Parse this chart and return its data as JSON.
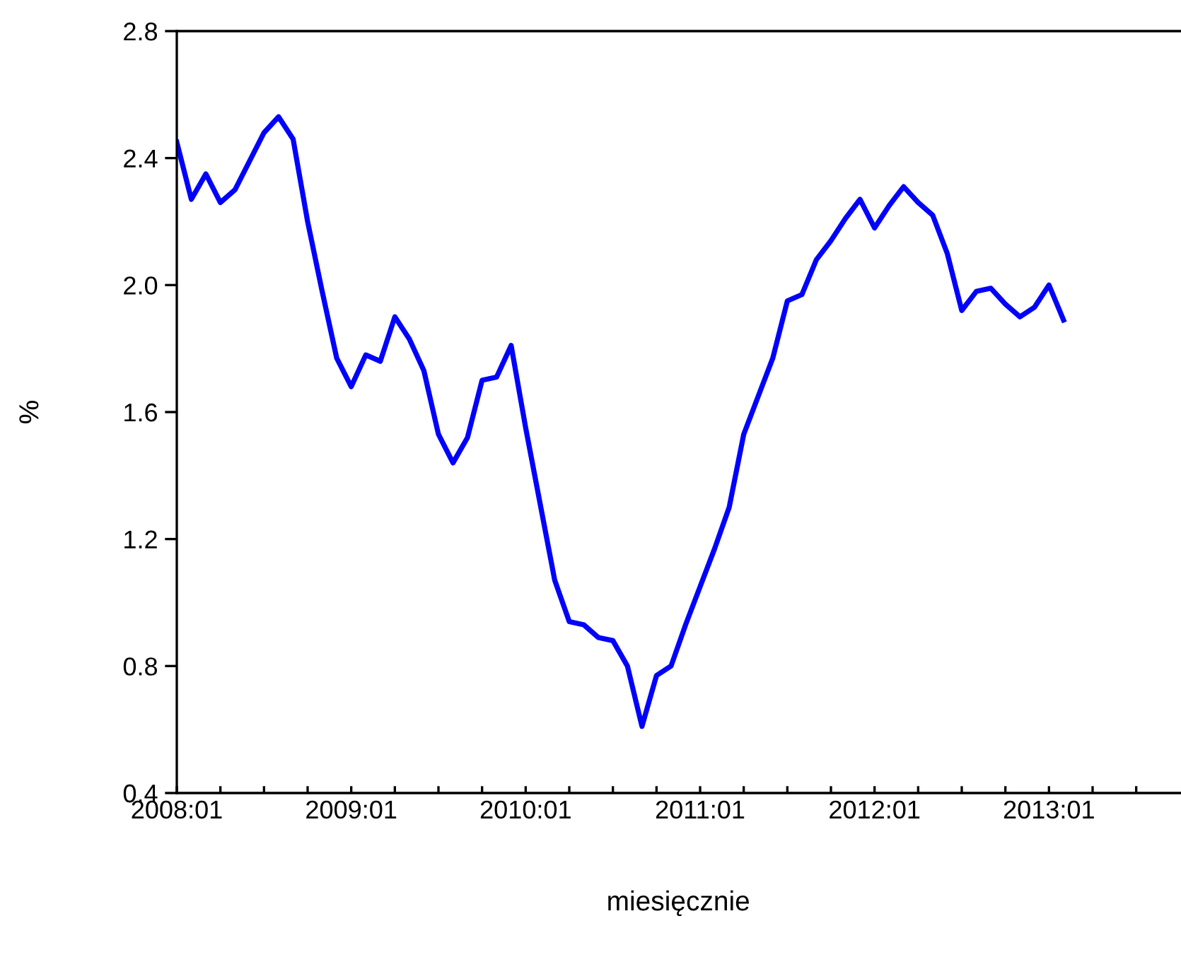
{
  "chart_data": {
    "type": "line",
    "xlabel": "miesięcznie",
    "ylabel": "%",
    "x": [
      "2008-01",
      "2008-02",
      "2008-03",
      "2008-04",
      "2008-05",
      "2008-06",
      "2008-07",
      "2008-08",
      "2008-09",
      "2008-10",
      "2008-11",
      "2008-12",
      "2009-01",
      "2009-02",
      "2009-03",
      "2009-04",
      "2009-05",
      "2009-06",
      "2009-07",
      "2009-08",
      "2009-09",
      "2009-10",
      "2009-11",
      "2009-12",
      "2010-01",
      "2010-02",
      "2010-03",
      "2010-04",
      "2010-05",
      "2010-06",
      "2010-07",
      "2010-08",
      "2010-09",
      "2010-10",
      "2010-11",
      "2010-12",
      "2011-01",
      "2011-02",
      "2011-03",
      "2011-04",
      "2011-05",
      "2011-06",
      "2011-07",
      "2011-08",
      "2011-09",
      "2011-10",
      "2011-11",
      "2011-12",
      "2012-01",
      "2012-02",
      "2012-03",
      "2012-04",
      "2012-05",
      "2012-06",
      "2012-07",
      "2012-08",
      "2012-09",
      "2012-10",
      "2012-11",
      "2012-12",
      "2013-01",
      "2013-02"
    ],
    "series": [
      {
        "color": "#0000ff",
        "values": [
          2.45,
          2.27,
          2.35,
          2.26,
          2.3,
          2.39,
          2.48,
          2.53,
          2.46,
          2.2,
          1.98,
          1.77,
          1.68,
          1.78,
          1.76,
          1.9,
          1.83,
          1.73,
          1.53,
          1.44,
          1.52,
          1.7,
          1.71,
          1.81,
          1.55,
          1.31,
          1.07,
          0.94,
          0.93,
          0.89,
          0.88,
          0.8,
          0.61,
          0.77,
          0.8,
          0.93,
          1.05,
          1.17,
          1.3,
          1.53,
          1.65,
          1.77,
          1.95,
          1.97,
          2.08,
          2.14,
          2.21,
          2.27,
          2.18,
          2.25,
          2.31,
          2.26,
          2.22,
          2.1,
          1.92,
          1.98,
          1.99,
          1.94,
          1.9,
          1.93,
          2.0,
          1.89
        ]
      }
    ],
    "xlim": [
      "2008-01",
      "2013-10"
    ],
    "xticks": [
      {
        "value": "2008-01",
        "label": "2008:01"
      },
      {
        "value": "2008-04",
        "label": null
      },
      {
        "value": "2008-07",
        "label": null
      },
      {
        "value": "2008-10",
        "label": null
      },
      {
        "value": "2009-01",
        "label": "2009:01"
      },
      {
        "value": "2009-04",
        "label": null
      },
      {
        "value": "2009-07",
        "label": null
      },
      {
        "value": "2009-10",
        "label": null
      },
      {
        "value": "2010-01",
        "label": "2010:01"
      },
      {
        "value": "2010-04",
        "label": null
      },
      {
        "value": "2010-07",
        "label": null
      },
      {
        "value": "2010-10",
        "label": null
      },
      {
        "value": "2011-01",
        "label": "2011:01"
      },
      {
        "value": "2011-04",
        "label": null
      },
      {
        "value": "2011-07",
        "label": null
      },
      {
        "value": "2011-10",
        "label": null
      },
      {
        "value": "2012-01",
        "label": "2012:01"
      },
      {
        "value": "2012-04",
        "label": null
      },
      {
        "value": "2012-07",
        "label": null
      },
      {
        "value": "2012-10",
        "label": null
      },
      {
        "value": "2013-01",
        "label": "2013:01"
      },
      {
        "value": "2013-04",
        "label": null
      },
      {
        "value": "2013-07",
        "label": null
      }
    ],
    "ylim": [
      0.4,
      2.8
    ],
    "yticks": [
      {
        "value": 0.4,
        "label": "0.4"
      },
      {
        "value": 0.8,
        "label": "0.8"
      },
      {
        "value": 1.2,
        "label": "1.2"
      },
      {
        "value": 1.6,
        "label": "1.6"
      },
      {
        "value": 2.0,
        "label": "2.0"
      },
      {
        "value": 2.4,
        "label": "2.4"
      },
      {
        "value": 2.8,
        "label": "2.8"
      }
    ],
    "grid": false,
    "legend": false,
    "marker": "none",
    "line_style": "solid"
  }
}
